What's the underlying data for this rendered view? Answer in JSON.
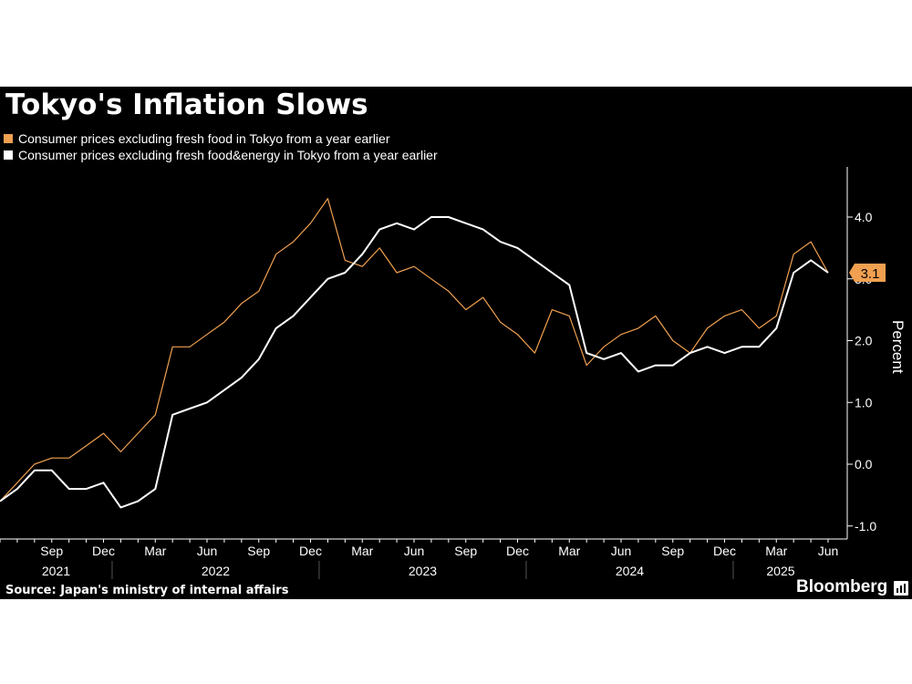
{
  "title": "Tokyo's Inflation Slows",
  "legend": [
    {
      "label": "Consumer prices excluding fresh food in Tokyo from a year earlier",
      "color": "#f0a050"
    },
    {
      "label": "Consumer prices excluding fresh food&energy in Tokyo from a year earlier",
      "color": "#ffffff"
    }
  ],
  "source": "Source: Japan's ministry of internal affairs",
  "brand": "Bloomberg",
  "brand_icon": "bloomberg-terminal-icon",
  "chart_data": {
    "type": "line",
    "x": [
      "2021-06",
      "2021-07",
      "2021-08",
      "2021-09",
      "2021-10",
      "2021-11",
      "2021-12",
      "2022-01",
      "2022-02",
      "2022-03",
      "2022-04",
      "2022-05",
      "2022-06",
      "2022-07",
      "2022-08",
      "2022-09",
      "2022-10",
      "2022-11",
      "2022-12",
      "2023-01",
      "2023-02",
      "2023-03",
      "2023-04",
      "2023-05",
      "2023-06",
      "2023-07",
      "2023-08",
      "2023-09",
      "2023-10",
      "2023-11",
      "2023-12",
      "2024-01",
      "2024-02",
      "2024-03",
      "2024-04",
      "2024-05",
      "2024-06",
      "2024-07",
      "2024-08",
      "2024-09",
      "2024-10",
      "2024-11",
      "2024-12",
      "2025-01",
      "2025-02",
      "2025-03",
      "2025-04",
      "2025-05",
      "2025-06"
    ],
    "series": [
      {
        "name": "Consumer prices excluding fresh food in Tokyo from a year earlier",
        "color": "#f0a050",
        "values": [
          -0.6,
          -0.3,
          0.0,
          0.1,
          0.1,
          0.3,
          0.5,
          0.2,
          0.5,
          0.8,
          1.9,
          1.9,
          2.1,
          2.3,
          2.6,
          2.8,
          3.4,
          3.6,
          3.9,
          4.3,
          3.3,
          3.2,
          3.5,
          3.1,
          3.2,
          3.0,
          2.8,
          2.5,
          2.7,
          2.3,
          2.1,
          1.8,
          2.5,
          2.4,
          1.6,
          1.9,
          2.1,
          2.2,
          2.4,
          2.0,
          1.8,
          2.2,
          2.4,
          2.5,
          2.2,
          2.4,
          3.4,
          3.6,
          3.1
        ]
      },
      {
        "name": "Consumer prices excluding fresh food&energy in Tokyo from a year earlier",
        "color": "#ffffff",
        "values": [
          -0.6,
          -0.4,
          -0.1,
          -0.1,
          -0.4,
          -0.4,
          -0.3,
          -0.7,
          -0.6,
          -0.4,
          0.8,
          0.9,
          1.0,
          1.2,
          1.4,
          1.7,
          2.2,
          2.4,
          2.7,
          3.0,
          3.1,
          3.4,
          3.8,
          3.9,
          3.8,
          4.0,
          4.0,
          3.9,
          3.8,
          3.6,
          3.5,
          3.3,
          3.1,
          2.9,
          1.8,
          1.7,
          1.8,
          1.5,
          1.6,
          1.6,
          1.8,
          1.9,
          1.8,
          1.9,
          1.9,
          2.2,
          3.1,
          3.3,
          3.1
        ]
      }
    ],
    "y_ticks": [
      "-1.0",
      "0.0",
      "1.0",
      "2.0",
      "3.0",
      "4.0"
    ],
    "x_month_labels": [
      {
        "x": "2021-09",
        "label": "Sep"
      },
      {
        "x": "2021-12",
        "label": "Dec"
      },
      {
        "x": "2022-03",
        "label": "Mar"
      },
      {
        "x": "2022-06",
        "label": "Jun"
      },
      {
        "x": "2022-09",
        "label": "Sep"
      },
      {
        "x": "2022-12",
        "label": "Dec"
      },
      {
        "x": "2023-03",
        "label": "Mar"
      },
      {
        "x": "2023-06",
        "label": "Jun"
      },
      {
        "x": "2023-09",
        "label": "Sep"
      },
      {
        "x": "2023-12",
        "label": "Dec"
      },
      {
        "x": "2024-03",
        "label": "Mar"
      },
      {
        "x": "2024-06",
        "label": "Jun"
      },
      {
        "x": "2024-09",
        "label": "Sep"
      },
      {
        "x": "2024-12",
        "label": "Dec"
      },
      {
        "x": "2025-03",
        "label": "Mar"
      },
      {
        "x": "2025-06",
        "label": "Jun"
      }
    ],
    "x_year_labels": [
      "2021",
      "2022",
      "2023",
      "2024",
      "2025"
    ],
    "ylabel": "Percent",
    "ylim": [
      -1.1,
      4.75
    ],
    "last_value_label": "3.1",
    "last_value_color": "#f0a050",
    "grid": false,
    "legend_position": "top-left"
  }
}
